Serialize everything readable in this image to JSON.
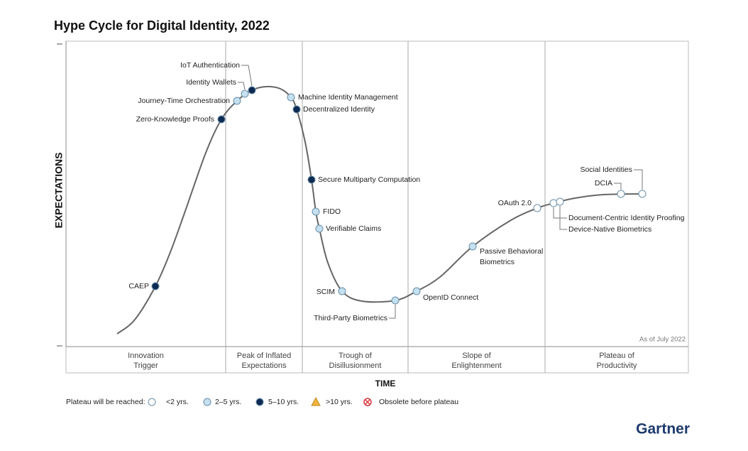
{
  "title": "Hype Cycle for Digital Identity, 2022",
  "y_axis_label": "EXPECTATIONS",
  "x_axis_label": "TIME",
  "as_of": "As of July 2022",
  "phases": [
    {
      "lines": [
        "Innovation",
        "Trigger"
      ]
    },
    {
      "lines": [
        "Peak of Inflated",
        "Expectations"
      ]
    },
    {
      "lines": [
        "Trough of",
        "Disillusionment"
      ]
    },
    {
      "lines": [
        "Slope of",
        "Enlightenment"
      ]
    },
    {
      "lines": [
        "Plateau of",
        "Productivity"
      ]
    }
  ],
  "nodes": [
    {
      "lines": [
        "CAEP"
      ],
      "color": "#0d2a52"
    },
    {
      "lines": [
        "Zero-Knowledge Proofs"
      ],
      "color": "#0d2a52"
    },
    {
      "lines": [
        "Journey-Time Orchestration"
      ],
      "color": "#c5e0ef"
    },
    {
      "lines": [
        "Identity Wallets"
      ],
      "color": "#c5e0ef"
    },
    {
      "lines": [
        "IoT Authentication"
      ],
      "color": "#0d2a52"
    },
    {
      "lines": [
        "Machine Identity Management"
      ],
      "color": "#c5e0ef"
    },
    {
      "lines": [
        "Decentralized Identity"
      ],
      "color": "#0d2a52"
    },
    {
      "lines": [
        "Secure Multiparty Computation"
      ],
      "color": "#0d2a52"
    },
    {
      "lines": [
        "FIDO"
      ],
      "color": "#c5e0ef"
    },
    {
      "lines": [
        "Verifiable Claims"
      ],
      "color": "#c5e0ef"
    },
    {
      "lines": [
        "SCIM"
      ],
      "color": "#c5e0ef"
    },
    {
      "lines": [
        "Third-Party Biometrics"
      ],
      "color": "#c5e0ef"
    },
    {
      "lines": [
        "OpenID Connect"
      ],
      "color": "#c5e0ef"
    },
    {
      "lines": [
        "Passive Behavioral",
        "Biometrics"
      ],
      "color": "#c5e0ef"
    },
    {
      "lines": [
        "OAuth 2.0"
      ],
      "color": "#ffffff"
    },
    {
      "lines": [
        "Document-Centric Identity Proofing"
      ],
      "color": "#ffffff"
    },
    {
      "lines": [
        "Device-Native Biometrics"
      ],
      "color": "#ffffff"
    },
    {
      "lines": [
        "DCIA"
      ],
      "color": "#ffffff"
    },
    {
      "lines": [
        "Social Identities"
      ],
      "color": "#ffffff"
    }
  ],
  "legend": {
    "title": "Plateau will be reached:",
    "items": [
      {
        "label": "<2 yrs.",
        "color": "#ffffff"
      },
      {
        "label": "2–5 yrs.",
        "color": "#c5e0ef"
      },
      {
        "label": "5–10 yrs.",
        "color": "#0d2a52"
      },
      {
        "label": ">10 yrs.",
        "color": "#f2b33d"
      },
      {
        "label": "Obsolete before plateau",
        "color": "#d9363e"
      }
    ]
  },
  "logo": "Gartner"
}
